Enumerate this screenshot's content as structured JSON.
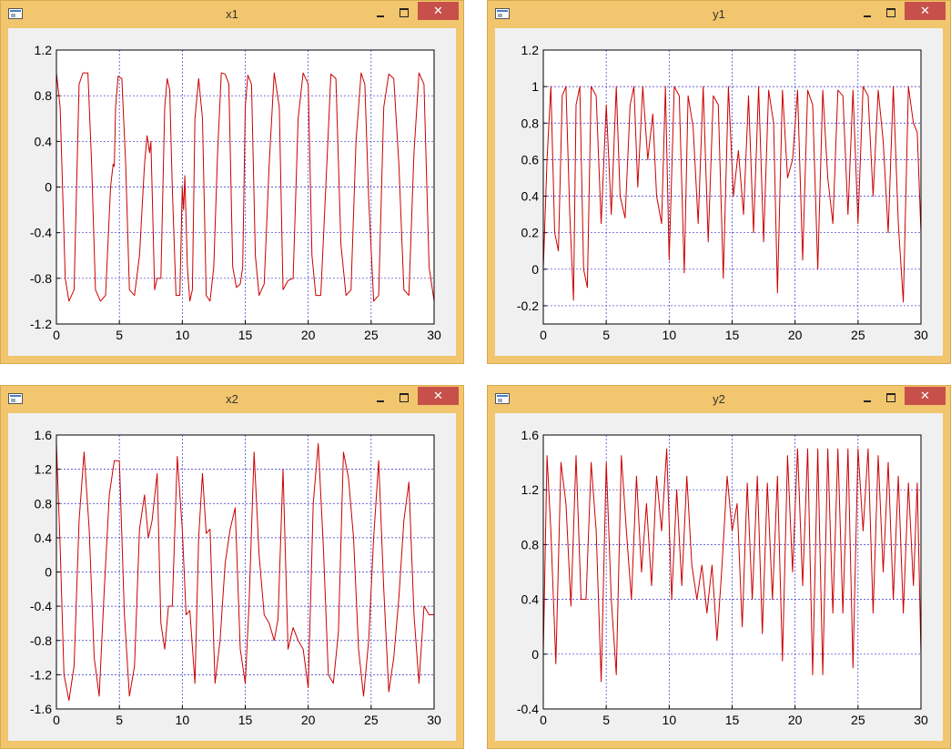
{
  "close_glyph": "✕",
  "windows": [
    {
      "title": "x1",
      "chart_data": {
        "type": "line",
        "xlim": [
          0,
          30
        ],
        "ylim": [
          -1.2,
          1.2
        ],
        "xticks": [
          "0",
          "5",
          "10",
          "15",
          "20",
          "25",
          "30"
        ],
        "yticks": [
          "-1.2",
          "-0.8",
          "-0.4",
          "0",
          "0.4",
          "0.8",
          "1.2"
        ],
        "grid": true,
        "line_color": "#cc0000",
        "grid_color": "#3333cc",
        "series": [
          {
            "x": [
              0,
              0.3,
              0.7,
              1.0,
              1.4,
              1.8,
              2.1,
              2.5,
              2.8,
              3.1,
              3.5,
              3.9,
              4.3,
              4.5,
              4.6,
              4.7,
              4.9,
              5.2,
              5.5,
              5.8,
              6.2,
              6.6,
              7.0,
              7.2,
              7.4,
              7.5,
              7.6,
              7.8,
              8.0,
              8.3,
              8.6,
              8.8,
              9.0,
              9.2,
              9.5,
              9.8,
              10.0,
              10.1,
              10.2,
              10.4,
              10.6,
              10.8,
              11.0,
              11.3,
              11.6,
              11.9,
              12.2,
              12.5,
              12.8,
              13.1,
              13.4,
              13.7,
              14.0,
              14.3,
              14.6,
              14.8,
              15.0,
              15.2,
              15.5,
              15.8,
              16.1,
              16.5,
              16.9,
              17.3,
              17.7,
              18.0,
              18.4,
              18.8,
              19.2,
              19.6,
              20.0,
              20.3,
              20.6,
              21.0,
              21.4,
              21.8,
              22.2,
              22.6,
              23.0,
              23.4,
              23.8,
              24.2,
              24.5,
              24.8,
              25.2,
              25.6,
              26.0,
              26.4,
              26.8,
              27.2,
              27.6,
              28.0,
              28.4,
              28.8,
              29.2,
              29.6,
              30.0
            ],
            "y": [
              1.0,
              0.7,
              -0.8,
              -1.0,
              -0.9,
              0.9,
              1.0,
              1.0,
              0.2,
              -0.9,
              -1.0,
              -0.95,
              0.0,
              0.2,
              0.18,
              0.7,
              0.97,
              0.95,
              0.2,
              -0.9,
              -0.95,
              -0.6,
              0.2,
              0.45,
              0.3,
              0.4,
              0.0,
              -0.9,
              -0.8,
              -0.8,
              0.7,
              0.95,
              0.85,
              0.0,
              -0.95,
              -0.95,
              0.0,
              -0.2,
              0.1,
              -0.7,
              -1.0,
              -0.9,
              0.6,
              0.95,
              0.6,
              -0.95,
              -1.0,
              -0.7,
              0.3,
              1.0,
              0.99,
              0.9,
              -0.7,
              -0.88,
              -0.85,
              -0.7,
              0.7,
              0.98,
              0.9,
              -0.6,
              -0.95,
              -0.85,
              0.2,
              1.0,
              0.7,
              -0.9,
              -0.82,
              -0.8,
              0.6,
              1.0,
              0.9,
              -0.6,
              -0.95,
              -0.95,
              0.0,
              0.99,
              0.95,
              -0.5,
              -0.95,
              -0.9,
              0.4,
              1.0,
              0.9,
              -0.1,
              -1.0,
              -0.95,
              0.7,
              0.99,
              0.95,
              0.2,
              -0.9,
              -0.95,
              0.3,
              1.0,
              0.9,
              -0.7,
              -1.0
            ]
          }
        ]
      }
    },
    {
      "title": "y1",
      "chart_data": {
        "type": "line",
        "xlim": [
          0,
          30
        ],
        "ylim": [
          -0.3,
          1.2
        ],
        "xticks": [
          "0",
          "5",
          "10",
          "15",
          "20",
          "25",
          "30"
        ],
        "yticks": [
          "-0.2",
          "0",
          "0.2",
          "0.4",
          "0.6",
          "0.8",
          "1",
          "1.2"
        ],
        "ytick_values": [
          -0.2,
          0,
          0.2,
          0.4,
          0.6,
          0.8,
          1.0,
          1.2
        ],
        "grid": true,
        "line_color": "#cc0000",
        "grid_color": "#3333cc",
        "series": [
          {
            "x": [
              0,
              0.3,
              0.6,
              0.9,
              1.2,
              1.5,
              1.8,
              2.1,
              2.4,
              2.6,
              2.9,
              3.2,
              3.5,
              3.8,
              4.2,
              4.6,
              5.0,
              5.4,
              5.8,
              6.1,
              6.5,
              6.9,
              7.2,
              7.5,
              7.9,
              8.3,
              8.7,
              9.0,
              9.4,
              9.7,
              10.0,
              10.4,
              10.8,
              11.2,
              11.5,
              11.9,
              12.3,
              12.7,
              13.1,
              13.5,
              13.9,
              14.3,
              14.7,
              15.1,
              15.5,
              15.9,
              16.3,
              16.7,
              17.1,
              17.5,
              17.9,
              18.3,
              18.6,
              19.0,
              19.4,
              19.8,
              20.2,
              20.6,
              21.0,
              21.4,
              21.8,
              22.2,
              22.6,
              23.0,
              23.4,
              23.8,
              24.2,
              24.6,
              25.0,
              25.4,
              25.8,
              26.2,
              26.6,
              27.0,
              27.4,
              27.8,
              28.2,
              28.6,
              29.0,
              29.4,
              29.7,
              30.0
            ],
            "y": [
              0.0,
              0.6,
              1.0,
              0.2,
              0.1,
              0.95,
              1.0,
              0.3,
              -0.17,
              0.9,
              1.0,
              0.0,
              -0.1,
              1.0,
              0.95,
              0.25,
              0.9,
              0.3,
              1.0,
              0.4,
              0.28,
              0.9,
              1.0,
              0.45,
              1.0,
              0.6,
              0.85,
              0.4,
              0.25,
              1.0,
              0.05,
              1.0,
              0.95,
              -0.02,
              0.95,
              0.78,
              0.25,
              1.0,
              0.15,
              0.95,
              0.9,
              -0.05,
              1.0,
              0.4,
              0.65,
              0.3,
              0.95,
              0.2,
              1.0,
              0.15,
              0.98,
              0.8,
              -0.13,
              0.98,
              0.5,
              0.6,
              0.98,
              0.05,
              0.98,
              0.9,
              0.0,
              0.98,
              0.5,
              0.25,
              0.98,
              0.95,
              0.3,
              0.98,
              0.25,
              1.0,
              0.95,
              0.4,
              0.98,
              0.7,
              0.2,
              1.0,
              0.25,
              -0.18,
              1.0,
              0.8,
              0.75,
              0.2
            ]
          }
        ]
      }
    },
    {
      "title": "x2",
      "chart_data": {
        "type": "line",
        "xlim": [
          0,
          30
        ],
        "ylim": [
          -1.6,
          1.6
        ],
        "xticks": [
          "0",
          "5",
          "10",
          "15",
          "20",
          "25",
          "30"
        ],
        "yticks": [
          "-1.6",
          "-1.2",
          "-0.8",
          "-0.4",
          "0",
          "0.4",
          "0.8",
          "1.2",
          "1.6"
        ],
        "grid": true,
        "line_color": "#cc0000",
        "grid_color": "#3333cc",
        "series": [
          {
            "x": [
              0,
              0.3,
              0.6,
              1.0,
              1.4,
              1.8,
              2.2,
              2.6,
              3.0,
              3.4,
              3.8,
              4.2,
              4.6,
              5.0,
              5.4,
              5.8,
              6.2,
              6.6,
              7.0,
              7.3,
              7.6,
              8.0,
              8.3,
              8.6,
              8.9,
              9.2,
              9.6,
              10.0,
              10.3,
              10.6,
              11.0,
              11.3,
              11.6,
              11.9,
              12.2,
              12.6,
              13.0,
              13.4,
              13.8,
              14.2,
              14.6,
              15.0,
              15.3,
              15.7,
              16.1,
              16.5,
              16.9,
              17.3,
              17.6,
              18.0,
              18.4,
              18.8,
              19.2,
              19.6,
              20.0,
              20.4,
              20.8,
              21.2,
              21.6,
              22.0,
              22.4,
              22.8,
              23.2,
              23.6,
              24.0,
              24.4,
              24.8,
              25.2,
              25.6,
              26.0,
              26.4,
              26.8,
              27.2,
              27.6,
              28.0,
              28.4,
              28.8,
              29.2,
              29.6,
              30.0
            ],
            "y": [
              1.5,
              0.3,
              -1.2,
              -1.5,
              -1.1,
              0.6,
              1.4,
              0.5,
              -1.0,
              -1.45,
              -0.2,
              0.9,
              1.3,
              1.3,
              -0.5,
              -1.45,
              -1.1,
              0.5,
              0.9,
              0.4,
              0.6,
              1.15,
              -0.6,
              -0.9,
              -0.4,
              -0.4,
              1.35,
              0.5,
              -0.5,
              -0.45,
              -1.3,
              0.4,
              1.15,
              0.45,
              0.5,
              -1.3,
              -0.8,
              0.1,
              0.5,
              0.75,
              -0.9,
              -1.3,
              -0.4,
              1.4,
              0.2,
              -0.5,
              -0.6,
              -0.8,
              -0.55,
              1.2,
              -0.9,
              -0.65,
              -0.8,
              -0.9,
              -1.35,
              0.8,
              1.5,
              0.3,
              -1.2,
              -1.3,
              -0.7,
              1.4,
              1.1,
              0.4,
              -0.9,
              -1.45,
              -0.8,
              0.4,
              1.3,
              -0.2,
              -1.4,
              -1.0,
              -0.3,
              0.6,
              1.05,
              -0.5,
              -1.3,
              -0.4,
              -0.5,
              -0.5
            ]
          }
        ]
      }
    },
    {
      "title": "y2",
      "chart_data": {
        "type": "line",
        "xlim": [
          0,
          30
        ],
        "ylim": [
          -0.4,
          1.6
        ],
        "xticks": [
          "0",
          "5",
          "10",
          "15",
          "20",
          "25",
          "30"
        ],
        "yticks": [
          "-0.4",
          "0",
          "0.4",
          "0.8",
          "1.2",
          "1.6"
        ],
        "grid": true,
        "line_color": "#cc0000",
        "grid_color": "#3333cc",
        "series": [
          {
            "x": [
              0,
              0.3,
              0.6,
              1.0,
              1.4,
              1.8,
              2.2,
              2.6,
              3.0,
              3.4,
              3.8,
              4.2,
              4.6,
              5.0,
              5.4,
              5.8,
              6.2,
              6.6,
              7.0,
              7.4,
              7.8,
              8.2,
              8.6,
              9.0,
              9.4,
              9.8,
              10.2,
              10.6,
              11.0,
              11.4,
              11.8,
              12.2,
              12.6,
              13.0,
              13.4,
              13.8,
              14.2,
              14.6,
              15.0,
              15.4,
              15.8,
              16.2,
              16.6,
              17.0,
              17.4,
              17.8,
              18.2,
              18.6,
              19.0,
              19.4,
              19.8,
              20.2,
              20.6,
              21.0,
              21.4,
              21.8,
              22.2,
              22.6,
              23.0,
              23.4,
              23.8,
              24.2,
              24.6,
              25.0,
              25.4,
              25.8,
              26.2,
              26.6,
              27.0,
              27.4,
              27.8,
              28.2,
              28.6,
              29.0,
              29.4,
              29.7,
              30.0
            ],
            "y": [
              0.0,
              1.45,
              0.9,
              -0.07,
              1.4,
              1.1,
              0.35,
              1.45,
              0.4,
              0.4,
              1.4,
              0.9,
              -0.2,
              1.4,
              0.4,
              -0.15,
              1.45,
              0.9,
              0.4,
              1.3,
              0.6,
              1.1,
              0.5,
              1.3,
              0.9,
              1.5,
              0.4,
              1.2,
              0.5,
              1.3,
              0.65,
              0.4,
              0.65,
              0.3,
              0.65,
              0.1,
              0.65,
              1.3,
              0.9,
              1.1,
              0.2,
              1.25,
              0.4,
              1.3,
              0.15,
              1.25,
              0.4,
              1.3,
              -0.05,
              1.45,
              0.6,
              1.5,
              0.5,
              1.5,
              -0.15,
              1.5,
              -0.15,
              1.5,
              0.3,
              1.5,
              0.3,
              1.5,
              -0.1,
              1.5,
              0.9,
              1.5,
              0.3,
              1.45,
              0.6,
              1.4,
              0.4,
              1.3,
              0.3,
              1.25,
              0.5,
              1.25,
              0.0
            ]
          }
        ]
      }
    }
  ]
}
